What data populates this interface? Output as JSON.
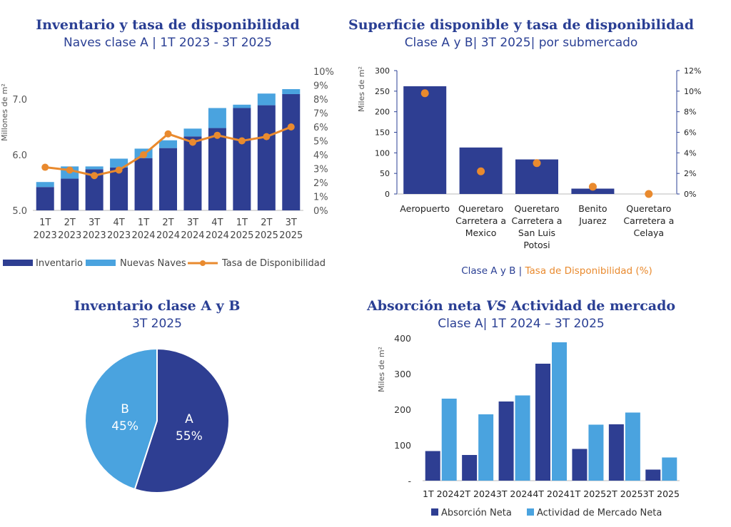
{
  "colors": {
    "navy": "#2e3e92",
    "sky": "#4aa3df",
    "orange": "#e98a2e",
    "title": "#2a3f94",
    "axis": "#555555"
  },
  "chart_data": [
    {
      "id": "inventory",
      "type": "bar",
      "title": "Inventario y tasa de disponibilidad",
      "subtitle": "Naves clase A | 1T 2023 - 3T 2025",
      "ylabel": "Millones de m²",
      "ylim": [
        5.0,
        7.5
      ],
      "yticks": [
        "5.0",
        "6.0",
        "7.0"
      ],
      "y2lim": [
        0,
        10
      ],
      "y2ticks": [
        "0%",
        "1%",
        "2%",
        "3%",
        "4%",
        "5%",
        "6%",
        "7%",
        "8%",
        "9%",
        "10%"
      ],
      "categories": [
        [
          "1T",
          "2023"
        ],
        [
          "2T",
          "2023"
        ],
        [
          "3T",
          "2023"
        ],
        [
          "4T",
          "2023"
        ],
        [
          "1T",
          "2024"
        ],
        [
          "2T",
          "2024"
        ],
        [
          "3T",
          "2024"
        ],
        [
          "4T",
          "2024"
        ],
        [
          "1T",
          "2025"
        ],
        [
          "2T",
          "2025"
        ],
        [
          "3T",
          "2025"
        ]
      ],
      "series": [
        {
          "name": "Inventario",
          "values": [
            5.42,
            5.57,
            5.74,
            5.77,
            5.94,
            6.12,
            6.33,
            6.48,
            6.84,
            6.89,
            7.09
          ]
        },
        {
          "name": "Nuevas Naves",
          "values": [
            0.09,
            0.22,
            0.05,
            0.16,
            0.17,
            0.14,
            0.14,
            0.36,
            0.06,
            0.21,
            0.09
          ]
        },
        {
          "name": "Tasa de Disponibilidad",
          "values": [
            3.1,
            2.9,
            2.5,
            2.9,
            4.0,
            5.5,
            4.9,
            5.4,
            5.0,
            5.3,
            6.0
          ]
        }
      ],
      "legend": [
        "Inventario",
        "Nuevas Naves",
        "Tasa de Disponibilidad"
      ]
    },
    {
      "id": "surface",
      "type": "bar",
      "title": "Superficie disponible y tasa de disponibilidad",
      "subtitle": "Clase A y B| 3T 2025| por submercado",
      "ylabel": "Miles de m²",
      "ylim": [
        0,
        300
      ],
      "yticks": [
        "0",
        "50",
        "100",
        "150",
        "200",
        "250",
        "300"
      ],
      "y2lim": [
        0,
        12
      ],
      "y2ticks": [
        "0%",
        "2%",
        "4%",
        "6%",
        "8%",
        "10%",
        "12%"
      ],
      "categories": [
        [
          "Aeropuerto"
        ],
        [
          "Queretaro",
          "Carretera a",
          "Mexico"
        ],
        [
          "Queretaro",
          "Carretera a",
          "San Luis",
          "Potosi"
        ],
        [
          "Benito",
          "Juarez"
        ],
        [
          "Queretaro",
          "Carretera a",
          "Celaya"
        ]
      ],
      "series": [
        {
          "name": "Clase A y B",
          "values": [
            262,
            113,
            84,
            13,
            0
          ]
        },
        {
          "name": "Tasa de Disponibilidad (%)",
          "values": [
            9.8,
            2.2,
            3.0,
            0.7,
            0.0
          ]
        }
      ],
      "legend_a": "Clase A y B",
      "legend_sep": " | ",
      "legend_b": "Tasa de Disponibilidad (%)"
    },
    {
      "id": "pie",
      "type": "pie",
      "title": "Inventario clase A y B",
      "subtitle": "3T 2025",
      "slices": [
        {
          "label": "A",
          "value": 55,
          "text": "55%"
        },
        {
          "label": "B",
          "value": 45,
          "text": "45%"
        }
      ]
    },
    {
      "id": "absorption",
      "type": "bar",
      "title_pre": "Absorción neta ",
      "title_em": "VS",
      "title_post": " Actividad de mercado",
      "subtitle": "Clase A| 1T 2024 – 3T 2025",
      "ylabel": "Miles de m²",
      "ylim": [
        0,
        400
      ],
      "yticks": [
        "-",
        "100",
        "200",
        "300",
        "400"
      ],
      "categories": [
        "1T 2024",
        "2T 2024",
        "3T 2024",
        "4T 2024",
        "1T 2025",
        "2T 2025",
        "3T 2025"
      ],
      "series": [
        {
          "name": "Absorción Neta",
          "values": [
            83,
            72,
            222,
            328,
            89,
            158,
            31
          ]
        },
        {
          "name": "Actividad de Mercado Neta",
          "values": [
            230,
            186,
            239,
            388,
            157,
            191,
            65
          ]
        }
      ],
      "legend": [
        "Absorción Neta",
        "Actividad de Mercado Neta"
      ]
    }
  ]
}
